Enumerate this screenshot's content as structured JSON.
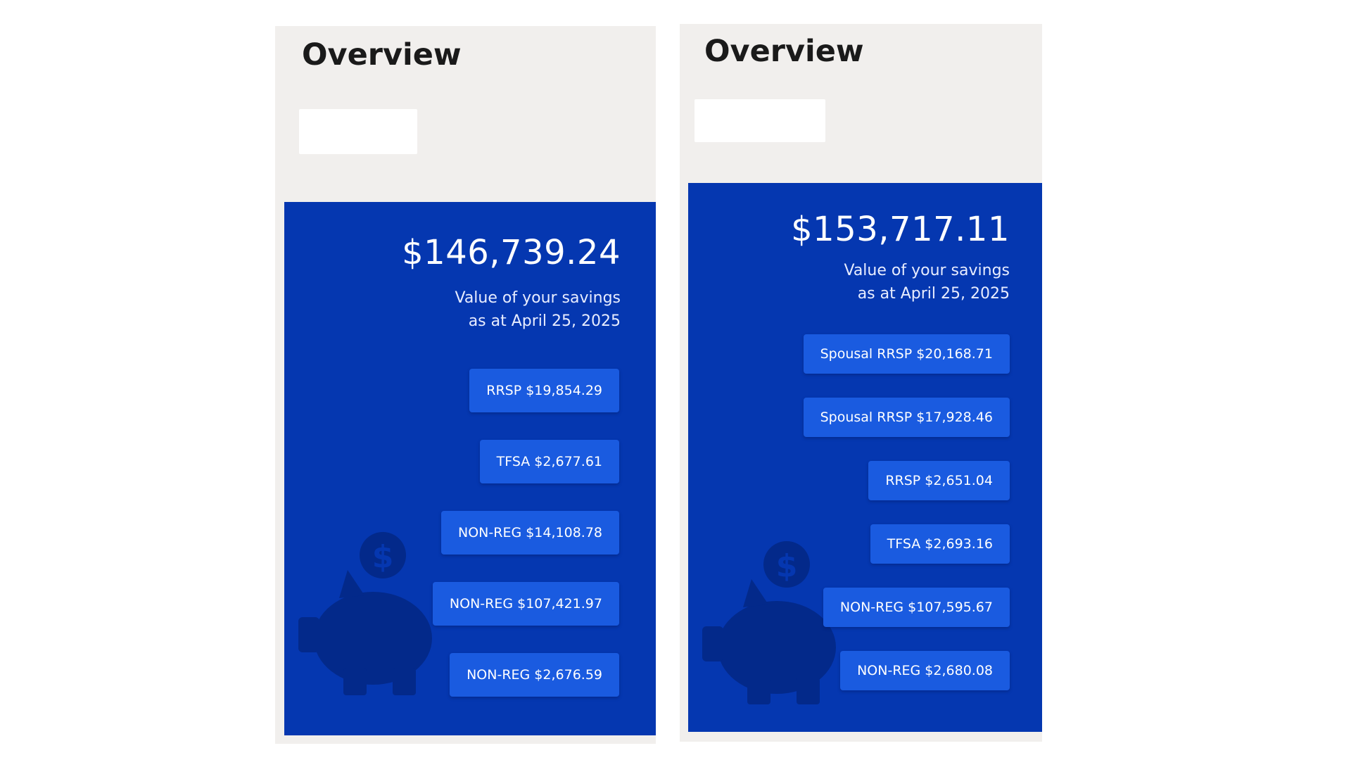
{
  "colors": {
    "page_background": "#ffffff",
    "panel_background": "#f1efed",
    "card_background": "#0537b0",
    "button_background": "#1a5be0",
    "piggy_color": "#03298a"
  },
  "icons": {
    "savings": "piggy-bank-dollar-icon"
  },
  "panels": [
    {
      "title": "Overview",
      "total_value": "$146,739.24",
      "caption_line1": "Value of your savings",
      "caption_line2": "as at April 25, 2025",
      "accounts": [
        {
          "label": "RRSP $19,854.29"
        },
        {
          "label": "TFSA $2,677.61"
        },
        {
          "label": "NON-REG $14,108.78"
        },
        {
          "label": "NON-REG $107,421.97"
        },
        {
          "label": "NON-REG $2,676.59"
        }
      ]
    },
    {
      "title": "Overview",
      "total_value": "$153,717.11",
      "caption_line1": "Value of your savings",
      "caption_line2": "as at April 25, 2025",
      "accounts": [
        {
          "label": "Spousal RRSP $20,168.71"
        },
        {
          "label": "Spousal RRSP $17,928.46"
        },
        {
          "label": "RRSP $2,651.04"
        },
        {
          "label": "TFSA $2,693.16"
        },
        {
          "label": "NON-REG $107,595.67"
        },
        {
          "label": "NON-REG $2,680.08"
        }
      ]
    }
  ]
}
